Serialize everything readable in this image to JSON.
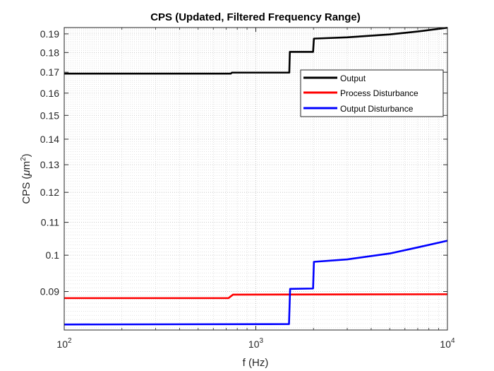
{
  "chart_data": {
    "type": "line",
    "title": "CPS (Updated, Filtered Frequency Range)",
    "xlabel": "f (Hz)",
    "ylabel": {
      "prefix": "CPS (",
      "mu": "μ",
      "unit": "m",
      "sup": "2",
      "suffix": ")"
    },
    "xscale": "log",
    "yscale": "log",
    "xlim": [
      100,
      10000
    ],
    "ylim": [
      0.0805,
      0.1935
    ],
    "grid": true,
    "minor_grid": true,
    "legend_position": "top-right",
    "x_tick_labels": [
      {
        "value": 100,
        "base": "10",
        "exp": "2"
      },
      {
        "value": 1000,
        "base": "10",
        "exp": "3"
      },
      {
        "value": 10000,
        "base": "10",
        "exp": "4"
      }
    ],
    "y_ticks": [
      0.09,
      0.1,
      0.11,
      0.12,
      0.13,
      0.14,
      0.15,
      0.16,
      0.17,
      0.18,
      0.19
    ],
    "y_tick_labels": [
      "0.09",
      "0.1",
      "0.11",
      "0.12",
      "0.13",
      "0.14",
      "0.15",
      "0.16",
      "0.17",
      "0.18",
      "0.19"
    ],
    "series": [
      {
        "name": "Output",
        "color": "#000000",
        "points": [
          [
            100,
            0.1693
          ],
          [
            740,
            0.1693
          ],
          [
            750,
            0.1698
          ],
          [
            1495,
            0.1698
          ],
          [
            1505,
            0.1803
          ],
          [
            1990,
            0.1803
          ],
          [
            2010,
            0.1874
          ],
          [
            3000,
            0.1881
          ],
          [
            5000,
            0.1897
          ],
          [
            7000,
            0.1913
          ],
          [
            10000,
            0.1934
          ]
        ]
      },
      {
        "name": "Process Disturbance",
        "color": "#ff0000",
        "points": [
          [
            100,
            0.0883
          ],
          [
            720,
            0.0883
          ],
          [
            760,
            0.0892
          ],
          [
            10000,
            0.0893
          ]
        ]
      },
      {
        "name": "Output Disturbance",
        "color": "#0000ff",
        "points": [
          [
            100,
            0.0818
          ],
          [
            1490,
            0.0819
          ],
          [
            1510,
            0.0907
          ],
          [
            1990,
            0.0908
          ],
          [
            2010,
            0.0981
          ],
          [
            3000,
            0.0988
          ],
          [
            5000,
            0.1005
          ],
          [
            7000,
            0.1023
          ],
          [
            10000,
            0.1043
          ]
        ]
      }
    ]
  }
}
